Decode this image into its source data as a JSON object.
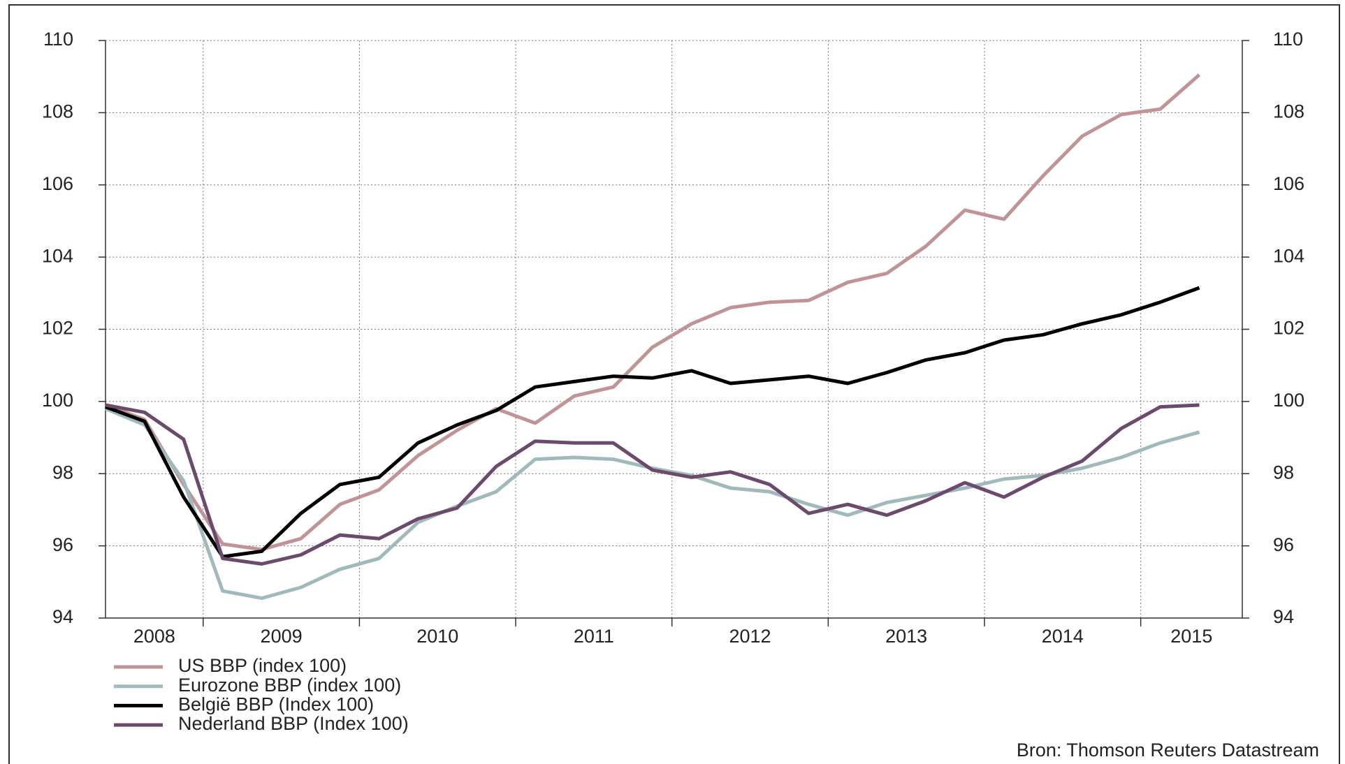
{
  "chart_data": {
    "type": "line",
    "x": [
      2008.375,
      2008.625,
      2008.875,
      2009.125,
      2009.375,
      2009.625,
      2009.875,
      2010.125,
      2010.375,
      2010.625,
      2010.875,
      2011.125,
      2011.375,
      2011.625,
      2011.875,
      2012.125,
      2012.375,
      2012.625,
      2012.875,
      2013.125,
      2013.375,
      2013.625,
      2013.875,
      2014.125,
      2014.375,
      2014.625,
      2014.875,
      2015.125,
      2015.375
    ],
    "xlim": [
      2008.375,
      2015.65
    ],
    "xticks": [
      2008,
      2009,
      2010,
      2011,
      2012,
      2013,
      2014,
      2015
    ],
    "ylim": [
      94,
      110
    ],
    "yticks": [
      94,
      96,
      98,
      100,
      102,
      104,
      106,
      108,
      110
    ],
    "y2lim": [
      94,
      110
    ],
    "y2ticks": [
      94,
      96,
      98,
      100,
      102,
      104,
      106,
      108,
      110
    ],
    "grid": true,
    "series": [
      {
        "name": "US BBP (index 100)",
        "color": "#c09494",
        "values": [
          99.9,
          99.5,
          97.7,
          96.05,
          95.9,
          96.2,
          97.15,
          97.55,
          98.5,
          99.2,
          99.8,
          99.4,
          100.15,
          100.4,
          101.5,
          102.15,
          102.6,
          102.75,
          102.8,
          103.3,
          103.55,
          104.3,
          105.3,
          105.05,
          106.25,
          107.35,
          107.95,
          108.1,
          109.05
        ]
      },
      {
        "name": "Eurozone BBP (index 100)",
        "color": "#9fb9bd",
        "values": [
          99.8,
          99.35,
          97.8,
          94.75,
          94.55,
          94.85,
          95.35,
          95.65,
          96.65,
          97.1,
          97.5,
          98.4,
          98.45,
          98.4,
          98.15,
          97.95,
          97.6,
          97.5,
          97.15,
          96.85,
          97.2,
          97.4,
          97.6,
          97.85,
          97.95,
          98.15,
          98.45,
          98.85,
          99.15
        ]
      },
      {
        "name": "België BBP (Index 100)",
        "color": "#000000",
        "values": [
          99.85,
          99.45,
          97.35,
          95.7,
          95.85,
          96.9,
          97.7,
          97.9,
          98.85,
          99.35,
          99.75,
          100.4,
          100.55,
          100.7,
          100.65,
          100.85,
          100.5,
          100.6,
          100.7,
          100.5,
          100.8,
          101.15,
          101.35,
          101.7,
          101.85,
          102.15,
          102.4,
          102.75,
          103.15
        ]
      },
      {
        "name": "Nederland BBP (Index 100)",
        "color": "#6b4a6b",
        "values": [
          99.9,
          99.7,
          98.95,
          95.65,
          95.5,
          95.75,
          96.3,
          96.2,
          96.75,
          97.05,
          98.2,
          98.9,
          98.85,
          98.85,
          98.1,
          97.9,
          98.05,
          97.7,
          96.9,
          97.15,
          96.85,
          97.25,
          97.75,
          97.35,
          97.9,
          98.35,
          99.25,
          99.85,
          99.9
        ]
      }
    ],
    "source": "Bron: Thomson Reuters Datastream"
  }
}
